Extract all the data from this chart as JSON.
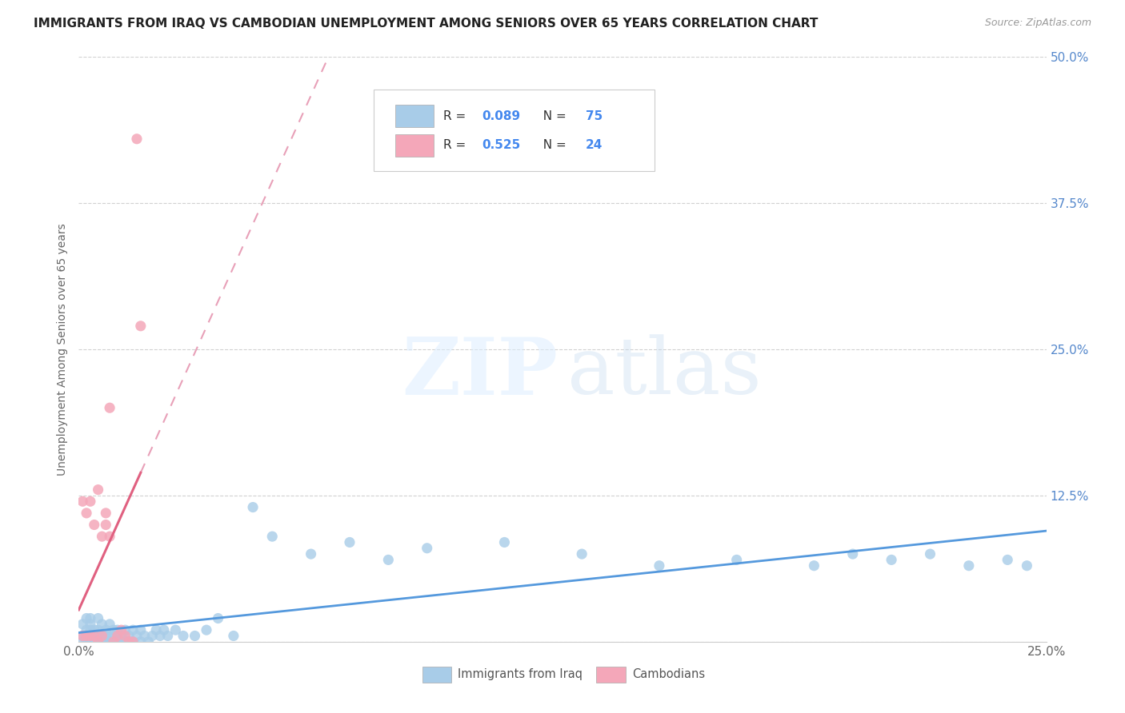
{
  "title": "IMMIGRANTS FROM IRAQ VS CAMBODIAN UNEMPLOYMENT AMONG SENIORS OVER 65 YEARS CORRELATION CHART",
  "source": "Source: ZipAtlas.com",
  "ylabel_label": "Unemployment Among Seniors over 65 years",
  "x_range": [
    0,
    0.25
  ],
  "y_range": [
    0,
    0.5
  ],
  "color_iraq": "#a8cce8",
  "color_camb": "#f4a7b9",
  "color_iraq_line": "#5599dd",
  "color_camb_line": "#e06080",
  "color_camb_dashed": "#e8a0b8",
  "iraq_x": [
    0.001,
    0.001,
    0.001,
    0.002,
    0.002,
    0.002,
    0.002,
    0.003,
    0.003,
    0.003,
    0.003,
    0.003,
    0.004,
    0.004,
    0.004,
    0.005,
    0.005,
    0.005,
    0.005,
    0.006,
    0.006,
    0.006,
    0.007,
    0.007,
    0.007,
    0.008,
    0.008,
    0.008,
    0.009,
    0.009,
    0.009,
    0.01,
    0.01,
    0.01,
    0.011,
    0.011,
    0.012,
    0.012,
    0.013,
    0.013,
    0.014,
    0.014,
    0.015,
    0.016,
    0.016,
    0.017,
    0.018,
    0.019,
    0.02,
    0.021,
    0.022,
    0.023,
    0.025,
    0.027,
    0.03,
    0.033,
    0.036,
    0.04,
    0.045,
    0.05,
    0.06,
    0.07,
    0.08,
    0.09,
    0.11,
    0.13,
    0.15,
    0.17,
    0.19,
    0.2,
    0.21,
    0.22,
    0.23,
    0.24,
    0.245
  ],
  "iraq_y": [
    0.0,
    0.005,
    0.015,
    0.0,
    0.005,
    0.01,
    0.02,
    0.0,
    0.005,
    0.01,
    0.015,
    0.02,
    0.0,
    0.005,
    0.01,
    0.0,
    0.005,
    0.01,
    0.02,
    0.0,
    0.005,
    0.015,
    0.0,
    0.005,
    0.01,
    0.0,
    0.005,
    0.015,
    0.0,
    0.005,
    0.01,
    0.0,
    0.005,
    0.01,
    0.0,
    0.005,
    0.0,
    0.01,
    0.0,
    0.005,
    0.0,
    0.01,
    0.005,
    0.0,
    0.01,
    0.005,
    0.0,
    0.005,
    0.01,
    0.005,
    0.01,
    0.005,
    0.01,
    0.005,
    0.005,
    0.01,
    0.02,
    0.005,
    0.115,
    0.09,
    0.075,
    0.085,
    0.07,
    0.08,
    0.085,
    0.075,
    0.065,
    0.07,
    0.065,
    0.075,
    0.07,
    0.075,
    0.065,
    0.07,
    0.065
  ],
  "camb_x": [
    0.001,
    0.001,
    0.002,
    0.002,
    0.003,
    0.003,
    0.004,
    0.004,
    0.005,
    0.005,
    0.006,
    0.006,
    0.007,
    0.007,
    0.008,
    0.008,
    0.009,
    0.01,
    0.011,
    0.012,
    0.013,
    0.014,
    0.015,
    0.016
  ],
  "camb_y": [
    0.005,
    0.12,
    0.005,
    0.11,
    0.005,
    0.12,
    0.005,
    0.1,
    0.0,
    0.13,
    0.005,
    0.09,
    0.1,
    0.11,
    0.2,
    0.09,
    0.0,
    0.005,
    0.01,
    0.005,
    0.0,
    0.0,
    0.43,
    0.27
  ],
  "camb_line_x0": 0.0,
  "camb_line_x1": 0.016,
  "camb_line_slope": 18.0,
  "camb_line_intercept": -0.01,
  "iraq_line_slope": 0.25,
  "iraq_line_intercept": 0.01
}
